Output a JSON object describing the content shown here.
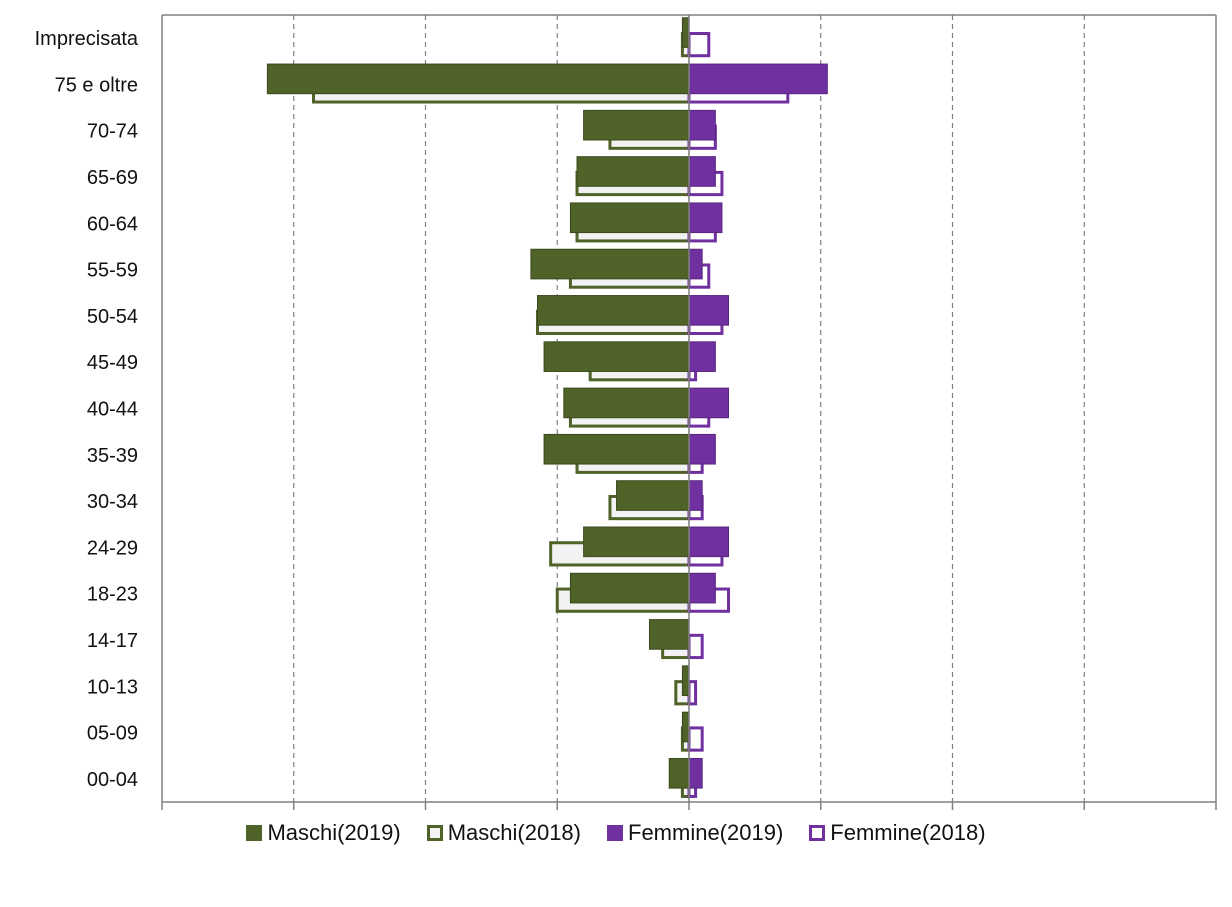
{
  "chart_data": {
    "type": "bar",
    "orientation": "horizontal-population-pyramid",
    "categories": [
      "Imprecisata",
      "75 e oltre",
      "70-74",
      "65-69",
      "60-64",
      "55-59",
      "50-54",
      "45-49",
      "40-44",
      "35-39",
      "30-34",
      "24-29",
      "18-23",
      "14-17",
      "10-13",
      "05-09",
      "00-04"
    ],
    "series": [
      {
        "name": "Maschi(2019)",
        "side": "left",
        "fill": "solid",
        "color": "#4f6228",
        "values": [
          1,
          64,
          16,
          17,
          18,
          24,
          23,
          22,
          19,
          22,
          11,
          16,
          18,
          6,
          1,
          1,
          3
        ]
      },
      {
        "name": "Maschi(2018)",
        "side": "left",
        "fill": "outline",
        "color": "#4f6228",
        "values": [
          1,
          57,
          12,
          17,
          17,
          18,
          23,
          15,
          18,
          17,
          12,
          21,
          20,
          4,
          2,
          1,
          1
        ]
      },
      {
        "name": "Femmine(2019)",
        "side": "right",
        "fill": "solid",
        "color": "#7030a0",
        "values": [
          0,
          21,
          4,
          4,
          5,
          2,
          6,
          4,
          6,
          4,
          2,
          6,
          4,
          0,
          0,
          0,
          2
        ]
      },
      {
        "name": "Femmine(2018)",
        "side": "right",
        "fill": "outline",
        "color": "#7030a0",
        "values": [
          3,
          15,
          4,
          5,
          4,
          3,
          5,
          1,
          3,
          2,
          2,
          5,
          6,
          2,
          1,
          2,
          1
        ]
      }
    ],
    "x_ticks": [
      "80",
      "60",
      "40",
      "20",
      "0",
      "20",
      "40",
      "60",
      "80"
    ],
    "xlim": [
      -80,
      80
    ],
    "grid": "vertical-dashed",
    "legend_position": "bottom"
  }
}
